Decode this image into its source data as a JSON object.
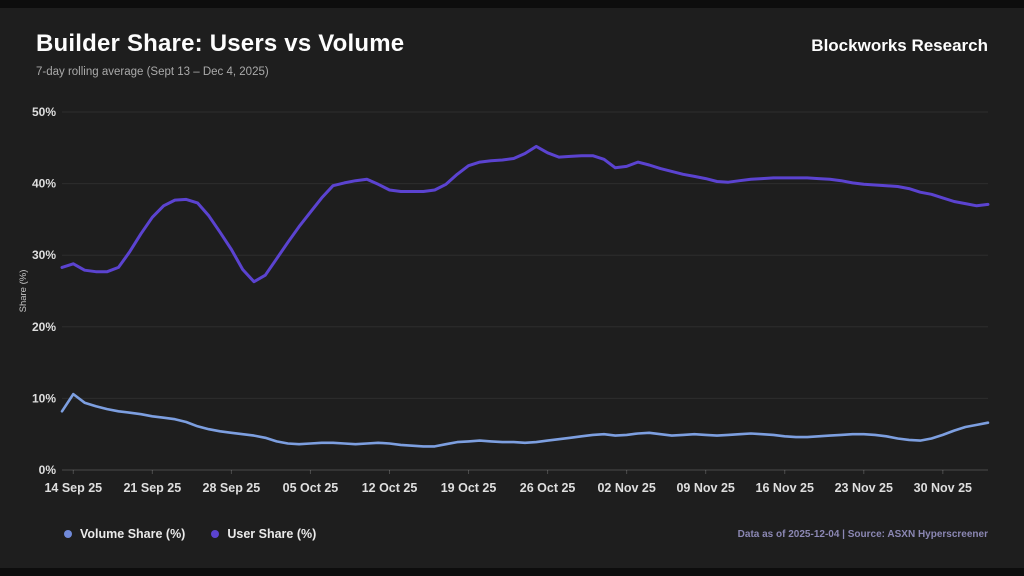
{
  "header": {
    "title": "Builder Share: Users vs Volume",
    "subtitle": "7-day rolling average (Sept 13 – Dec 4, 2025)",
    "brand": "Blockworks Research"
  },
  "footer": {
    "note": "Data as of 2025-12-04 | Source: ASXN Hyperscreener"
  },
  "legend": {
    "items": [
      {
        "label": "Volume Share (%)",
        "color": "#7089d9"
      },
      {
        "label": "User Share (%)",
        "color": "#5b43d0"
      }
    ]
  },
  "colors": {
    "panel_bg": "#1e1e1e",
    "letterbox": "#0d0d0d",
    "grid": "rgba(255,255,255,0.07)",
    "axis": "rgba(255,255,255,0.20)",
    "tick_label": "#dedede",
    "volume_line": "#7d9fe0",
    "user_line": "#5b43d0"
  },
  "chart_data": {
    "type": "line",
    "title": "Builder Share: Users vs Volume",
    "subtitle": "7-day rolling average (Sept 13 – Dec 4, 2025)",
    "xlabel": "",
    "ylabel": "Share (%)",
    "ylim": [
      0,
      50
    ],
    "grid": "horizontal-only",
    "legend_position": "bottom-left",
    "x_start_date": "2025-09-13",
    "x_end_date": "2025-12-04",
    "n_points": 83,
    "y_ticks": [
      {
        "value": 0,
        "label": "0%"
      },
      {
        "value": 10,
        "label": "10%"
      },
      {
        "value": 20,
        "label": "20%"
      },
      {
        "value": 30,
        "label": "30%"
      },
      {
        "value": 40,
        "label": "40%"
      },
      {
        "value": 50,
        "label": "50%"
      }
    ],
    "x_ticks": [
      {
        "day_index": 1,
        "label": "14 Sep 25"
      },
      {
        "day_index": 8,
        "label": "21 Sep 25"
      },
      {
        "day_index": 15,
        "label": "28 Sep 25"
      },
      {
        "day_index": 22,
        "label": "05 Oct 25"
      },
      {
        "day_index": 29,
        "label": "12 Oct 25"
      },
      {
        "day_index": 36,
        "label": "19 Oct 25"
      },
      {
        "day_index": 43,
        "label": "26 Oct 25"
      },
      {
        "day_index": 50,
        "label": "02 Nov 25"
      },
      {
        "day_index": 57,
        "label": "09 Nov 25"
      },
      {
        "day_index": 64,
        "label": "16 Nov 25"
      },
      {
        "day_index": 71,
        "label": "23 Nov 25"
      },
      {
        "day_index": 78,
        "label": "30 Nov 25"
      }
    ],
    "series": [
      {
        "name": "Volume Share (%)",
        "color": "#7d9fe0",
        "stroke_width": 2.6,
        "values": [
          8.2,
          10.6,
          9.4,
          8.9,
          8.5,
          8.2,
          8.0,
          7.8,
          7.5,
          7.3,
          7.1,
          6.7,
          6.1,
          5.7,
          5.4,
          5.2,
          5.0,
          4.8,
          4.5,
          4.0,
          3.7,
          3.6,
          3.7,
          3.8,
          3.8,
          3.7,
          3.6,
          3.7,
          3.8,
          3.7,
          3.5,
          3.4,
          3.3,
          3.3,
          3.6,
          3.9,
          4.0,
          4.1,
          4.0,
          3.9,
          3.9,
          3.8,
          3.9,
          4.1,
          4.3,
          4.5,
          4.7,
          4.9,
          5.0,
          4.8,
          4.9,
          5.1,
          5.2,
          5.0,
          4.8,
          4.9,
          5.0,
          4.9,
          4.8,
          4.9,
          5.0,
          5.1,
          5.0,
          4.9,
          4.7,
          4.6,
          4.6,
          4.7,
          4.8,
          4.9,
          5.0,
          5.0,
          4.9,
          4.7,
          4.4,
          4.2,
          4.1,
          4.4,
          4.9,
          5.5,
          6.0,
          6.3,
          6.6
        ]
      },
      {
        "name": "User Share (%)",
        "color": "#5b43d0",
        "stroke_width": 3,
        "values": [
          28.3,
          28.8,
          27.9,
          27.7,
          27.7,
          28.3,
          30.5,
          33.0,
          35.3,
          36.9,
          37.7,
          37.8,
          37.3,
          35.5,
          33.2,
          30.8,
          28.0,
          26.3,
          27.2,
          29.5,
          31.8,
          34.0,
          36.0,
          38.0,
          39.7,
          40.1,
          40.4,
          40.6,
          39.9,
          39.1,
          38.9,
          38.9,
          38.9,
          39.1,
          39.9,
          41.3,
          42.5,
          43.0,
          43.2,
          43.3,
          43.5,
          44.2,
          45.2,
          44.3,
          43.7,
          43.8,
          43.9,
          43.9,
          43.4,
          42.2,
          42.4,
          43.0,
          42.6,
          42.1,
          41.7,
          41.3,
          41.0,
          40.7,
          40.3,
          40.2,
          40.4,
          40.6,
          40.7,
          40.8,
          40.8,
          40.8,
          40.8,
          40.7,
          40.6,
          40.4,
          40.1,
          39.9,
          39.8,
          39.7,
          39.6,
          39.3,
          38.8,
          38.5,
          38.0,
          37.5,
          37.2,
          36.9,
          37.1
        ]
      }
    ]
  }
}
